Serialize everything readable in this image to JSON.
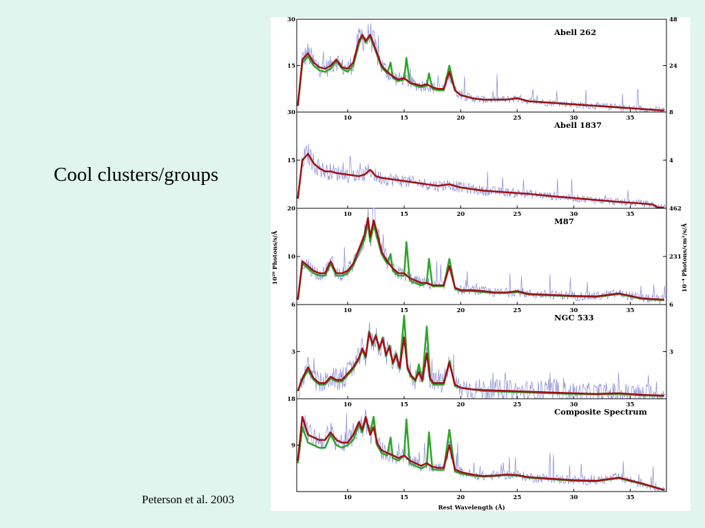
{
  "slide": {
    "title": "Cool clusters/groups",
    "citation": "Peterson et al. 2003"
  },
  "chart_data": {
    "type": "line",
    "xlabel": "Rest Wavelength (Å)",
    "ylabel_left": "10²⁰ Photons/s/Å",
    "ylabel_right": "10⁻⁴ Photons/cm²/s/Å",
    "xlim": [
      5.5,
      38.2
    ],
    "x_ticks": [
      10,
      15,
      20,
      25,
      30,
      35
    ],
    "colors": {
      "data": "#7b7fd0",
      "model_full": "#2fa52b",
      "model_fit": "#9e1216"
    },
    "panels": [
      {
        "name": "Abell 262",
        "yticks_left": [
          30,
          15
        ],
        "yticks_right": [
          48,
          24
        ],
        "ylim_left": [
          0,
          30
        ],
        "model_fit": {
          "x": [
            5.6,
            6,
            6.5,
            7,
            7.5,
            8,
            8.5,
            9,
            9.5,
            10,
            10.5,
            11,
            11.3,
            11.6,
            12,
            12.3,
            12.6,
            13,
            13.5,
            14,
            14.5,
            15,
            15.5,
            16,
            16.5,
            17,
            17.5,
            18,
            18.5,
            19,
            19.5,
            20,
            21,
            22,
            23,
            24,
            25,
            26,
            28,
            30,
            32,
            34,
            36,
            38
          ],
          "y": [
            2,
            17,
            19,
            16,
            14.5,
            14,
            15,
            17,
            14.5,
            14,
            16,
            23,
            25,
            23,
            25,
            22,
            19,
            15,
            13,
            11.5,
            10.5,
            11,
            9.5,
            9,
            8.5,
            9,
            8,
            7.5,
            7.5,
            13,
            7,
            5.5,
            4.5,
            4,
            4,
            4,
            4.5,
            3.5,
            3,
            2.5,
            2,
            1.5,
            1,
            0.5
          ]
        },
        "model_full": {
          "x": [
            5.6,
            6,
            6.5,
            7,
            7.5,
            8,
            8.5,
            9,
            9.5,
            10,
            10.5,
            11,
            11.3,
            11.6,
            12,
            12.3,
            12.6,
            13,
            13.5,
            13.8,
            14,
            14.5,
            15,
            15.2,
            15.5,
            16,
            16.5,
            17,
            17.2,
            17.5,
            18,
            18.5,
            19,
            19.5,
            20,
            21,
            22,
            23,
            24,
            25,
            26,
            28,
            30,
            32,
            34,
            36,
            38
          ],
          "y": [
            2,
            16,
            18,
            15,
            13.5,
            13,
            14,
            16.5,
            14,
            13,
            15,
            22,
            24.5,
            22.5,
            24.5,
            21.5,
            18.5,
            14.5,
            12.5,
            16,
            11,
            10,
            10.5,
            17.5,
            9.5,
            8.5,
            8,
            8.5,
            12.5,
            7.5,
            7,
            7,
            15,
            7,
            5.5,
            4.5,
            4,
            4,
            4,
            4.5,
            3.5,
            3,
            2.5,
            2,
            1.5,
            1,
            0.5
          ]
        }
      },
      {
        "name": "Abell 1837",
        "yticks_left": [
          30,
          15
        ],
        "yticks_right": [
          8,
          4
        ],
        "ylim_left": [
          0,
          30
        ],
        "model_fit": {
          "x": [
            5.6,
            6,
            6.5,
            7,
            7.5,
            8,
            8.5,
            9,
            10,
            11,
            11.5,
            12,
            12.5,
            13,
            14,
            15,
            16,
            17,
            18,
            19,
            20,
            22,
            24,
            26,
            28,
            30,
            32,
            34,
            36,
            37,
            37.4,
            38
          ],
          "y": [
            3,
            15,
            17,
            14,
            12.5,
            11.5,
            11.5,
            11,
            10.5,
            10,
            10.5,
            12,
            10,
            9.5,
            9,
            8.5,
            8,
            7.5,
            7,
            7.5,
            6.5,
            5.5,
            5,
            4.5,
            3.8,
            3.2,
            2.6,
            2,
            1.5,
            1.2,
            0.3,
            0.2
          ]
        }
      },
      {
        "name": "M87",
        "yticks_left": [
          20,
          10
        ],
        "yticks_right": [
          462,
          231
        ],
        "ylim_left": [
          0,
          20
        ],
        "model_fit": {
          "x": [
            5.6,
            6,
            6.5,
            7,
            7.5,
            8,
            8.5,
            9,
            9.5,
            10,
            10.5,
            11,
            11.5,
            11.8,
            12,
            12.3,
            12.6,
            13,
            13.5,
            14,
            14.5,
            15,
            15.5,
            16,
            16.5,
            17,
            17.5,
            18,
            18.5,
            19,
            19.5,
            20,
            21,
            22,
            23,
            24,
            25,
            26,
            28,
            30,
            32,
            34,
            36,
            38
          ],
          "y": [
            1,
            9,
            8,
            7,
            6.5,
            6.5,
            9,
            6.5,
            6.5,
            7,
            8.5,
            11.5,
            14.5,
            18,
            14,
            17.5,
            15,
            11,
            9,
            7.5,
            6.5,
            6.5,
            5.5,
            5,
            4.5,
            4.5,
            4,
            4,
            4,
            8,
            3.5,
            3,
            3,
            2.8,
            2.5,
            2.5,
            2.8,
            2.2,
            2,
            1.8,
            1.7,
            2.3,
            1.3,
            1
          ]
        },
        "model_full": {
          "x": [
            5.6,
            6,
            6.5,
            7,
            7.5,
            8,
            8.5,
            9,
            9.5,
            10,
            10.5,
            11,
            11.5,
            11.8,
            12,
            12.3,
            12.6,
            13,
            13.5,
            13.8,
            14,
            14.5,
            15,
            15.2,
            15.5,
            16,
            16.5,
            17,
            17.2,
            17.5,
            18,
            18.5,
            19,
            19.5,
            20,
            21,
            22,
            23,
            24,
            25,
            26,
            28,
            30,
            32,
            34,
            36,
            38
          ],
          "y": [
            1,
            8.5,
            7.5,
            6.5,
            6,
            6,
            8.5,
            6,
            6,
            6.5,
            8,
            11,
            13.5,
            17,
            13,
            16.5,
            14,
            10.5,
            8.5,
            10.5,
            7,
            6,
            6,
            13,
            5,
            4.5,
            4,
            4.5,
            9.5,
            3.8,
            3.8,
            3.8,
            9.5,
            3.3,
            2.8,
            2.8,
            2.6,
            2.4,
            2.4,
            2.6,
            2.1,
            1.9,
            1.7,
            1.6,
            2.2,
            1.2,
            0.9
          ]
        }
      },
      {
        "name": "NGC 533",
        "yticks_left": [
          6,
          3
        ],
        "yticks_right": [
          6,
          3
        ],
        "ylim_left": [
          0,
          6
        ],
        "model_fit": {
          "x": [
            5.6,
            6,
            6.5,
            7,
            7.5,
            8,
            8.5,
            9,
            9.5,
            10,
            10.5,
            11,
            11.3,
            11.6,
            11.9,
            12.2,
            12.5,
            12.8,
            13.1,
            13.4,
            13.7,
            14,
            14.3,
            14.6,
            15,
            15.3,
            15.6,
            16,
            16.3,
            16.6,
            17,
            17.3,
            17.6,
            18,
            18.5,
            19,
            19.5,
            20,
            21,
            22,
            24,
            26,
            28,
            30,
            32,
            34,
            36,
            38
          ],
          "y": [
            0.5,
            1.3,
            2,
            1.3,
            1,
            1,
            1.4,
            1.2,
            1.2,
            1.6,
            2,
            2.6,
            3.2,
            2.7,
            4.2,
            3.5,
            4,
            3.2,
            3.8,
            2.8,
            3.3,
            2.3,
            2.8,
            2,
            3.9,
            2,
            1.5,
            1.2,
            1.7,
            1.2,
            2.9,
            1.3,
            1,
            1,
            1,
            2.3,
            0.9,
            0.7,
            0.6,
            0.55,
            0.5,
            0.45,
            0.4,
            0.35,
            0.3,
            0.35,
            0.25,
            0.2
          ]
        },
        "model_full": {
          "x": [
            5.6,
            6,
            6.5,
            7,
            7.5,
            8,
            8.5,
            9,
            9.5,
            10,
            10.5,
            11,
            11.3,
            11.6,
            11.9,
            12.2,
            12.5,
            12.8,
            13.1,
            13.4,
            13.7,
            14,
            14.3,
            14.6,
            15,
            15.3,
            15.6,
            16,
            16.3,
            16.6,
            17,
            17.3,
            17.6,
            18,
            18.5,
            19,
            19.5,
            20,
            21,
            22,
            24,
            26,
            28,
            30,
            32,
            34,
            36,
            38
          ],
          "y": [
            0.5,
            1.2,
            1.8,
            1.2,
            0.9,
            0.9,
            1.3,
            1.1,
            1.1,
            1.5,
            1.9,
            2.5,
            3.1,
            2.6,
            4.3,
            3.4,
            4.1,
            3.1,
            3.9,
            2.7,
            3.4,
            2.2,
            2.9,
            1.9,
            5.3,
            1.9,
            1.4,
            1.1,
            2.2,
            1.1,
            4.6,
            1.2,
            0.9,
            0.9,
            0.9,
            2.4,
            0.8,
            0.7,
            0.6,
            0.5,
            0.45,
            0.4,
            0.35,
            0.3,
            0.28,
            0.3,
            0.22,
            0.18
          ]
        }
      },
      {
        "name": "Composite Spectrum",
        "yticks_left": [
          18,
          9
        ],
        "yticks_right": [],
        "ylim_left": [
          0,
          18
        ],
        "model_fit": {
          "x": [
            5.6,
            6,
            6.5,
            7,
            7.5,
            8,
            8.5,
            9,
            9.5,
            10,
            10.5,
            11,
            11.3,
            11.6,
            12,
            12.3,
            12.6,
            13,
            13.5,
            14,
            14.5,
            15,
            15.5,
            16,
            16.5,
            17,
            17.5,
            18,
            18.5,
            19,
            19.5,
            20,
            21,
            22,
            23,
            24,
            25,
            26,
            28,
            30,
            32,
            34,
            36,
            38
          ],
          "y": [
            6,
            14.5,
            11,
            10.5,
            10,
            10,
            11.5,
            10,
            9.5,
            9.5,
            11,
            13.5,
            12,
            14.5,
            11,
            12.5,
            9.5,
            8,
            7.5,
            7,
            6.5,
            7,
            6,
            5.5,
            5,
            5.5,
            4.8,
            4.6,
            4.6,
            9,
            4.3,
            3.8,
            3.3,
            3,
            3.1,
            3.3,
            3.2,
            2.8,
            2.5,
            2.2,
            2.1,
            2.7,
            1.6,
            0.3
          ]
        },
        "model_full": {
          "x": [
            5.6,
            6,
            6.5,
            7,
            7.5,
            8,
            8.5,
            9,
            9.5,
            10,
            10.5,
            11,
            11.3,
            11.6,
            12,
            12.3,
            12.6,
            13,
            13.5,
            13.8,
            14,
            14.5,
            15,
            15.2,
            15.5,
            16,
            16.5,
            17,
            17.2,
            17.5,
            18,
            18.5,
            19,
            19.5,
            20,
            21,
            22,
            23,
            24,
            25,
            26,
            28,
            30,
            32,
            34,
            36,
            38
          ],
          "y": [
            5.5,
            12.5,
            9.5,
            9,
            8.5,
            8.5,
            11,
            9,
            8.5,
            9,
            10,
            13,
            11.5,
            14,
            11.5,
            14.5,
            9,
            7.5,
            7,
            10.5,
            6.5,
            6,
            7,
            14,
            5.5,
            5,
            4.5,
            5,
            11.5,
            4.3,
            4.2,
            4.2,
            12,
            3.9,
            3.5,
            3.1,
            2.9,
            3,
            3.2,
            3.1,
            2.7,
            2.4,
            2.1,
            2,
            2.6,
            1.5,
            0.3
          ]
        }
      }
    ]
  }
}
